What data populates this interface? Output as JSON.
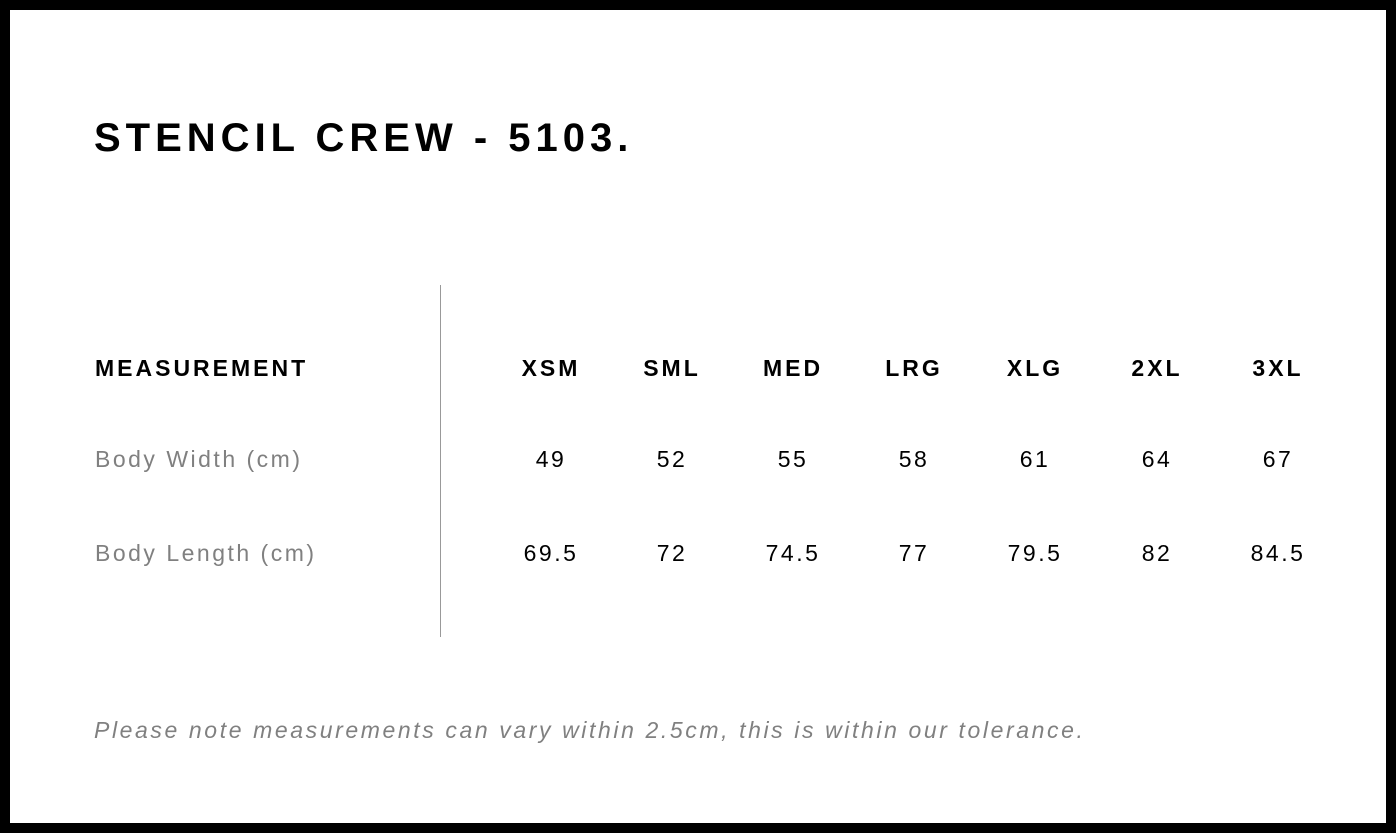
{
  "title": "STENCIL CREW - 5103.",
  "table": {
    "header": "MEASUREMENT",
    "sizes": [
      "XSM",
      "SML",
      "MED",
      "LRG",
      "XLG",
      "2XL",
      "3XL"
    ],
    "rows": [
      {
        "label": "Body Width (cm)",
        "values": [
          "49",
          "52",
          "55",
          "58",
          "61",
          "64",
          "67"
        ]
      },
      {
        "label": "Body Length (cm)",
        "values": [
          "69.5",
          "72",
          "74.5",
          "77",
          "79.5",
          "82",
          "84.5"
        ]
      }
    ]
  },
  "note": "Please note measurements can vary within 2.5cm, this is within our tolerance."
}
